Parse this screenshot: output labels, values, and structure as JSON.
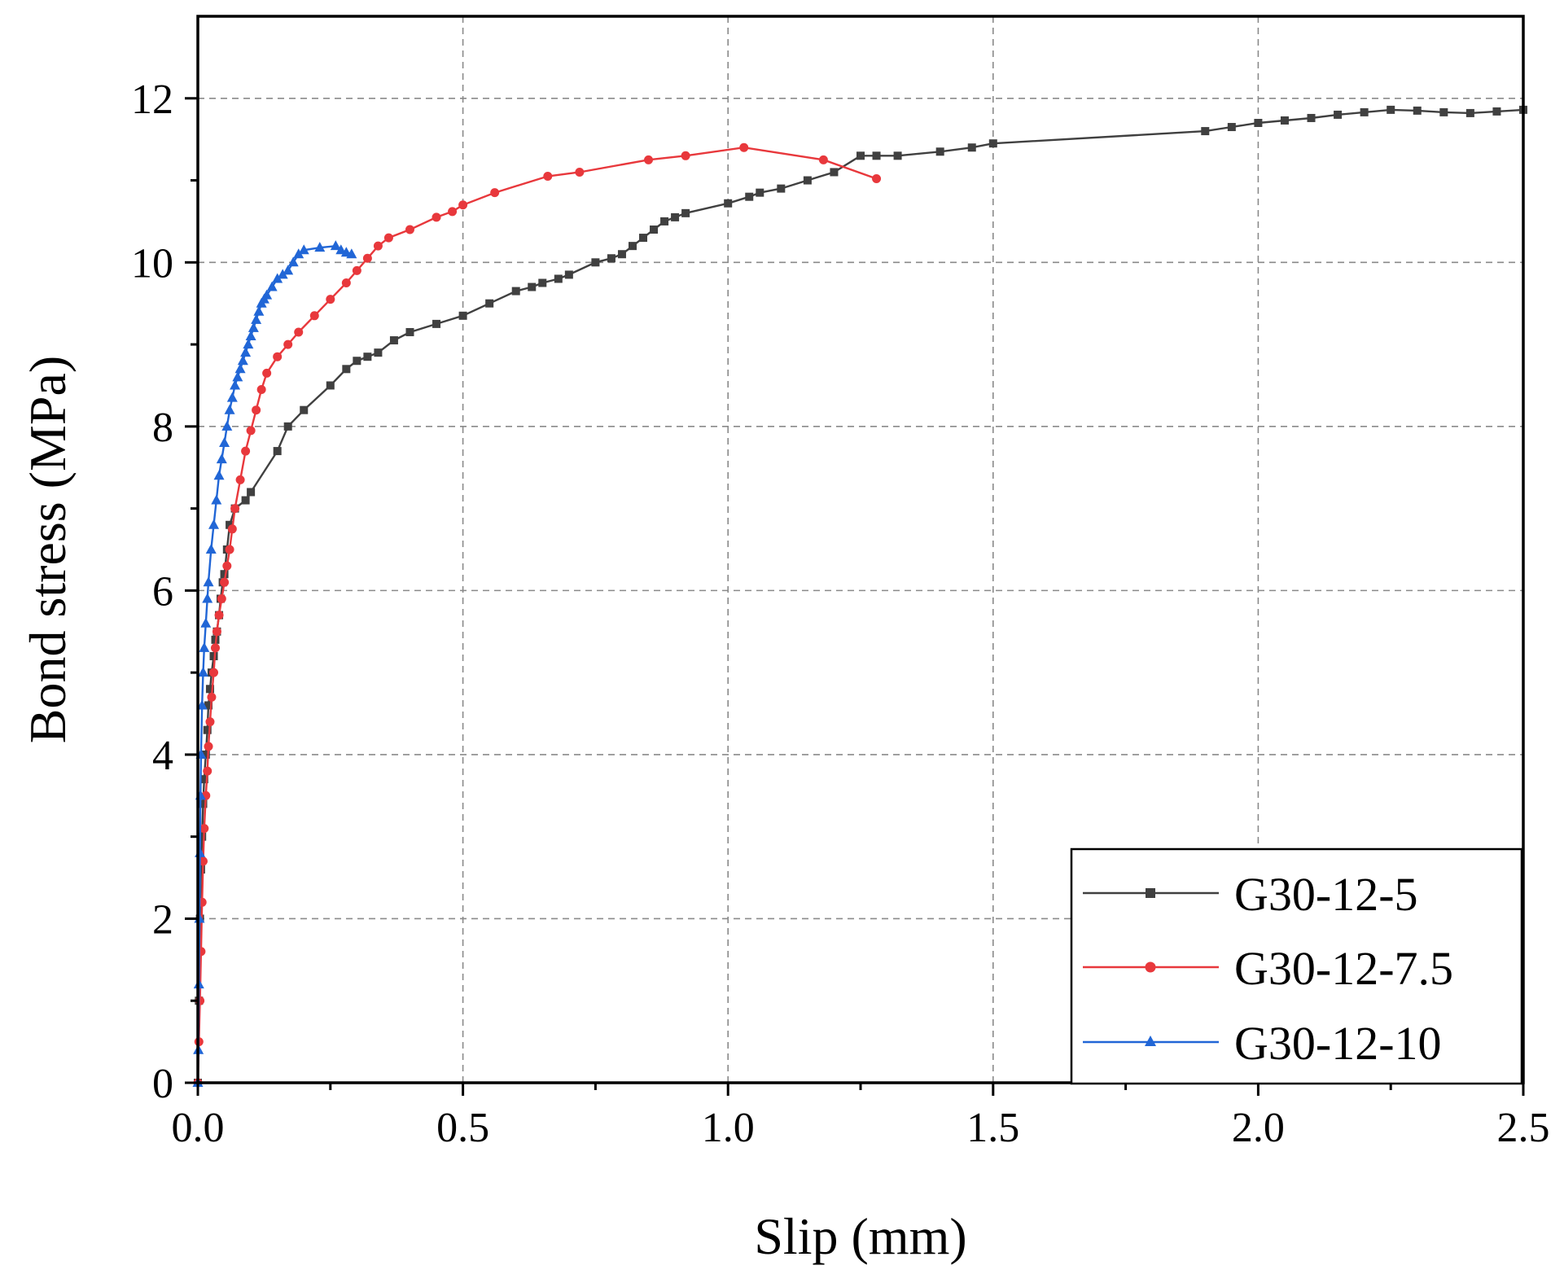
{
  "chart_data": {
    "type": "line",
    "title": "",
    "xlabel": "Slip (mm)",
    "ylabel": "Bond stress (MPa)",
    "xlim": [
      0,
      2.5
    ],
    "ylim": [
      0,
      13
    ],
    "grid": true,
    "legend_position": "bottom-right",
    "x_ticks": [
      0.0,
      0.5,
      1.0,
      1.5,
      2.0,
      2.5
    ],
    "x_tick_labels": [
      "0.0",
      "0.5",
      "1.0",
      "1.5",
      "2.0",
      "2.5"
    ],
    "y_ticks": [
      0,
      2,
      4,
      6,
      8,
      10,
      12
    ],
    "y_tick_labels": [
      "0",
      "2",
      "4",
      "6",
      "8",
      "10",
      "12"
    ],
    "series": [
      {
        "name": "G30-12-5",
        "color": "#404040",
        "marker": "square",
        "x": [
          0,
          0.002,
          0.004,
          0.006,
          0.008,
          0.01,
          0.012,
          0.015,
          0.018,
          0.02,
          0.023,
          0.026,
          0.03,
          0.033,
          0.036,
          0.04,
          0.043,
          0.047,
          0.05,
          0.055,
          0.06,
          0.07,
          0.09,
          0.1,
          0.15,
          0.17,
          0.2,
          0.25,
          0.28,
          0.3,
          0.32,
          0.34,
          0.37,
          0.4,
          0.45,
          0.5,
          0.55,
          0.6,
          0.63,
          0.65,
          0.68,
          0.7,
          0.75,
          0.78,
          0.8,
          0.82,
          0.84,
          0.86,
          0.88,
          0.9,
          0.92,
          1.0,
          1.04,
          1.06,
          1.1,
          1.15,
          1.2,
          1.25,
          1.28,
          1.32,
          1.4,
          1.46,
          1.5,
          1.9,
          1.95,
          2.0,
          2.05,
          2.1,
          2.15,
          2.2,
          2.25,
          2.3,
          2.35,
          2.4,
          2.45,
          2.5
        ],
        "y": [
          0,
          1.0,
          2.0,
          2.6,
          3.0,
          3.4,
          3.7,
          4.0,
          4.3,
          4.6,
          4.8,
          5.0,
          5.2,
          5.4,
          5.5,
          5.7,
          5.9,
          6.1,
          6.2,
          6.5,
          6.8,
          7.0,
          7.1,
          7.2,
          7.7,
          8.0,
          8.2,
          8.5,
          8.7,
          8.8,
          8.85,
          8.9,
          9.05,
          9.15,
          9.25,
          9.35,
          9.5,
          9.65,
          9.7,
          9.75,
          9.8,
          9.85,
          10.0,
          10.05,
          10.1,
          10.2,
          10.3,
          10.4,
          10.5,
          10.55,
          10.6,
          10.72,
          10.8,
          10.85,
          10.9,
          11.0,
          11.1,
          11.3,
          11.3,
          11.3,
          11.35,
          11.4,
          11.45,
          11.6,
          11.65,
          11.7,
          11.73,
          11.76,
          11.8,
          11.83,
          11.86,
          11.85,
          11.83,
          11.82,
          11.84,
          11.86
        ]
      },
      {
        "name": "G30-12-7.5",
        "color": "#e8383c",
        "marker": "circle",
        "x": [
          0,
          0.002,
          0.004,
          0.006,
          0.008,
          0.01,
          0.012,
          0.015,
          0.018,
          0.02,
          0.023,
          0.026,
          0.03,
          0.033,
          0.036,
          0.04,
          0.045,
          0.05,
          0.055,
          0.06,
          0.065,
          0.07,
          0.08,
          0.09,
          0.1,
          0.11,
          0.12,
          0.13,
          0.15,
          0.17,
          0.19,
          0.22,
          0.25,
          0.28,
          0.3,
          0.32,
          0.34,
          0.36,
          0.4,
          0.45,
          0.48,
          0.5,
          0.56,
          0.66,
          0.72,
          0.85,
          0.92,
          1.03,
          1.18,
          1.28
        ],
        "y": [
          0,
          0.5,
          1.0,
          1.6,
          2.2,
          2.7,
          3.1,
          3.5,
          3.8,
          4.1,
          4.4,
          4.7,
          5.0,
          5.3,
          5.5,
          5.7,
          5.9,
          6.1,
          6.3,
          6.5,
          6.75,
          7.0,
          7.35,
          7.7,
          7.95,
          8.2,
          8.45,
          8.65,
          8.85,
          9.0,
          9.15,
          9.35,
          9.55,
          9.75,
          9.9,
          10.05,
          10.2,
          10.3,
          10.4,
          10.55,
          10.62,
          10.7,
          10.85,
          11.05,
          11.1,
          11.25,
          11.3,
          11.4,
          11.25,
          11.02
        ]
      },
      {
        "name": "G30-12-10",
        "color": "#2166d6",
        "marker": "triangle",
        "x": [
          0,
          0.001,
          0.002,
          0.003,
          0.004,
          0.005,
          0.006,
          0.008,
          0.01,
          0.012,
          0.015,
          0.018,
          0.02,
          0.025,
          0.03,
          0.035,
          0.04,
          0.045,
          0.05,
          0.055,
          0.06,
          0.065,
          0.07,
          0.075,
          0.08,
          0.085,
          0.09,
          0.095,
          0.1,
          0.105,
          0.11,
          0.115,
          0.12,
          0.125,
          0.13,
          0.14,
          0.15,
          0.16,
          0.17,
          0.18,
          0.19,
          0.2,
          0.23,
          0.26,
          0.27,
          0.28,
          0.29
        ],
        "y": [
          0,
          0.4,
          1.2,
          2.0,
          2.8,
          3.5,
          4.0,
          4.6,
          5.0,
          5.3,
          5.6,
          5.9,
          6.1,
          6.5,
          6.8,
          7.1,
          7.4,
          7.6,
          7.8,
          8.0,
          8.2,
          8.35,
          8.5,
          8.6,
          8.7,
          8.8,
          8.9,
          9.0,
          9.1,
          9.2,
          9.3,
          9.4,
          9.5,
          9.55,
          9.6,
          9.7,
          9.8,
          9.85,
          9.9,
          10.0,
          10.1,
          10.15,
          10.18,
          10.2,
          10.15,
          10.12,
          10.1
        ]
      }
    ]
  }
}
